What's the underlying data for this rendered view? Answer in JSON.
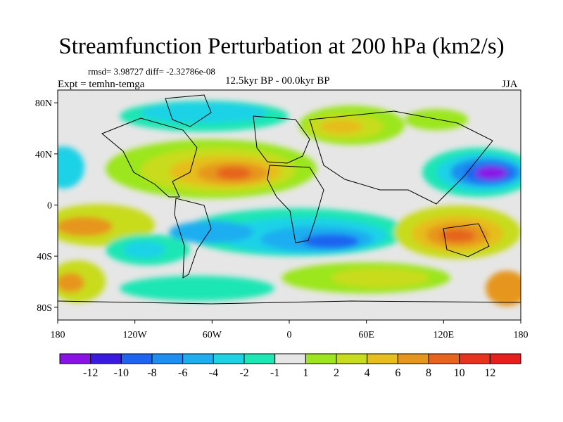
{
  "header": {
    "title": "Streamfunction Perturbation at 200 hPa (km2/s)",
    "stats": "rmsd= 3.98727 diff= -2.32786e-08",
    "experiment": "Expt = temhn-temga",
    "period": "12.5kyr BP - 00.0kyr BP",
    "season": "JJA"
  },
  "axes": {
    "lat_labels": [
      "80N",
      "40N",
      "0",
      "40S",
      "80S"
    ],
    "lon_labels": [
      "180",
      "120W",
      "60W",
      "0",
      "60E",
      "120E",
      "180"
    ]
  },
  "colorbar": {
    "labels": [
      "-12",
      "-10",
      "-8",
      "-6",
      "-4",
      "-2",
      "-1",
      "1",
      "2",
      "4",
      "6",
      "8",
      "10",
      "12"
    ],
    "colors": [
      "#8a12e6",
      "#3a1ae0",
      "#1e64f0",
      "#1e8ef0",
      "#1eaef0",
      "#1ed2e6",
      "#1ee6b4",
      "#e6e6e6",
      "#9be61e",
      "#c8dc1e",
      "#e6be1e",
      "#e6961e",
      "#e6641e",
      "#e6321e",
      "#e61e1e"
    ]
  },
  "map_data": {
    "projection": "cylindrical equidistant",
    "lon_range": [
      -180,
      180
    ],
    "lat_range": [
      -90,
      90
    ],
    "field": "streamfunction perturbation",
    "units": "km2/s"
  }
}
